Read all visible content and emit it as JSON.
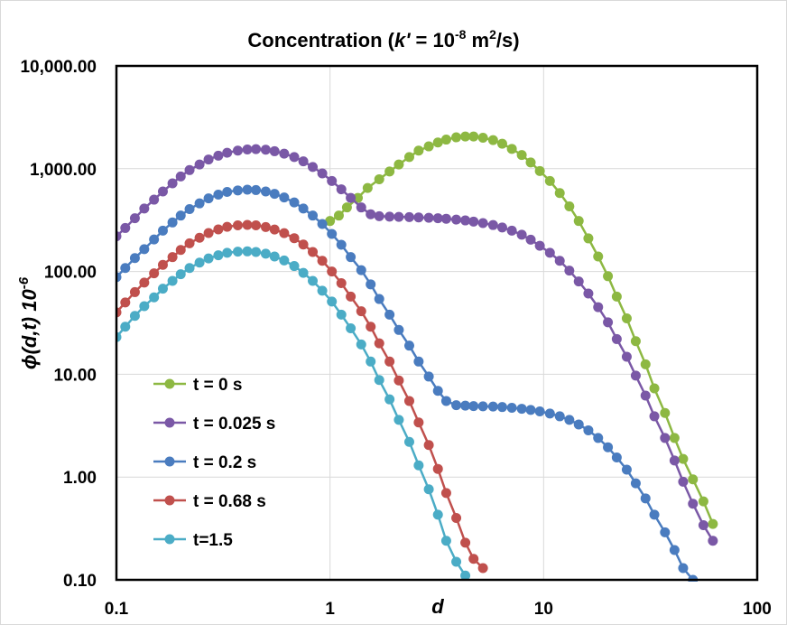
{
  "chart_data": {
    "type": "line",
    "title": {
      "prefix": "Concentration (",
      "k_symbol": "k'",
      "middle": " = 10",
      "exp1": "-8",
      "unit": " m",
      "exp2": "2",
      "suffix": "/s)"
    },
    "xlabel": "d",
    "ylabel": {
      "main": "ϕ(d,t) 10",
      "exp": "-6"
    },
    "x_scale": "log",
    "y_scale": "log",
    "xlim": [
      0.1,
      100
    ],
    "ylim": [
      0.1,
      10000
    ],
    "x_ticks": [
      {
        "value": 0.1,
        "label": "0.1"
      },
      {
        "value": 1,
        "label": "1"
      },
      {
        "value": 10,
        "label": "10"
      },
      {
        "value": 100,
        "label": "100"
      }
    ],
    "y_ticks": [
      {
        "value": 0.1,
        "label": "0.10"
      },
      {
        "value": 1,
        "label": "1.00"
      },
      {
        "value": 10,
        "label": "10.00"
      },
      {
        "value": 100,
        "label": "100.00"
      },
      {
        "value": 1000,
        "label": "1,000.00"
      },
      {
        "value": 10000,
        "label": "10,000.00"
      }
    ],
    "grid": true,
    "legend_position": "left-lower",
    "series": [
      {
        "name": "t = 0 s",
        "color": "#8DB842",
        "points": [
          [
            1.0,
            310
          ],
          [
            1.1,
            350
          ],
          [
            1.2,
            420
          ],
          [
            1.35,
            520
          ],
          [
            1.5,
            650
          ],
          [
            1.7,
            790
          ],
          [
            1.9,
            940
          ],
          [
            2.1,
            1100
          ],
          [
            2.35,
            1300
          ],
          [
            2.6,
            1500
          ],
          [
            2.9,
            1650
          ],
          [
            3.2,
            1800
          ],
          [
            3.5,
            1920
          ],
          [
            3.9,
            2020
          ],
          [
            4.3,
            2060
          ],
          [
            4.7,
            2060
          ],
          [
            5.2,
            2000
          ],
          [
            5.8,
            1900
          ],
          [
            6.4,
            1750
          ],
          [
            7.1,
            1560
          ],
          [
            7.9,
            1360
          ],
          [
            8.7,
            1150
          ],
          [
            9.6,
            950
          ],
          [
            10.7,
            760
          ],
          [
            11.9,
            580
          ],
          [
            13.2,
            430
          ],
          [
            14.6,
            310
          ],
          [
            16.2,
            210
          ],
          [
            18,
            140
          ],
          [
            20,
            90
          ],
          [
            22,
            57
          ],
          [
            24.5,
            35
          ],
          [
            27,
            21
          ],
          [
            30,
            12.5
          ],
          [
            33,
            7.3
          ],
          [
            37,
            4.2
          ],
          [
            41,
            2.4
          ],
          [
            45,
            1.5
          ],
          [
            50,
            0.95
          ],
          [
            56,
            0.58
          ],
          [
            62,
            0.35
          ]
        ]
      },
      {
        "name": "t = 0.025 s",
        "color": "#7A58A6",
        "points": [
          [
            0.1,
            220
          ],
          [
            0.11,
            265
          ],
          [
            0.122,
            330
          ],
          [
            0.135,
            410
          ],
          [
            0.15,
            500
          ],
          [
            0.165,
            600
          ],
          [
            0.183,
            720
          ],
          [
            0.2,
            840
          ],
          [
            0.22,
            970
          ],
          [
            0.245,
            1100
          ],
          [
            0.27,
            1230
          ],
          [
            0.3,
            1340
          ],
          [
            0.33,
            1430
          ],
          [
            0.37,
            1500
          ],
          [
            0.41,
            1540
          ],
          [
            0.45,
            1550
          ],
          [
            0.5,
            1530
          ],
          [
            0.55,
            1480
          ],
          [
            0.61,
            1400
          ],
          [
            0.68,
            1300
          ],
          [
            0.75,
            1180
          ],
          [
            0.83,
            1040
          ],
          [
            0.92,
            900
          ],
          [
            1.02,
            760
          ],
          [
            1.13,
            630
          ],
          [
            1.25,
            520
          ],
          [
            1.4,
            420
          ],
          [
            1.55,
            360
          ],
          [
            1.7,
            345
          ],
          [
            1.9,
            342
          ],
          [
            2.1,
            340
          ],
          [
            2.35,
            338
          ],
          [
            2.6,
            336
          ],
          [
            2.9,
            333
          ],
          [
            3.2,
            330
          ],
          [
            3.5,
            326
          ],
          [
            3.9,
            320
          ],
          [
            4.3,
            314
          ],
          [
            4.7,
            306
          ],
          [
            5.2,
            296
          ],
          [
            5.8,
            283
          ],
          [
            6.4,
            268
          ],
          [
            7.1,
            250
          ],
          [
            7.9,
            228
          ],
          [
            8.7,
            204
          ],
          [
            9.6,
            178
          ],
          [
            10.7,
            152
          ],
          [
            11.9,
            127
          ],
          [
            13.2,
            102
          ],
          [
            14.6,
            80
          ],
          [
            16.2,
            61
          ],
          [
            18,
            45
          ],
          [
            20,
            32
          ],
          [
            22,
            22
          ],
          [
            24.5,
            14.8
          ],
          [
            27,
            9.7
          ],
          [
            30,
            6.2
          ],
          [
            33,
            3.9
          ],
          [
            37,
            2.4
          ],
          [
            41,
            1.45
          ],
          [
            45,
            0.9
          ],
          [
            50,
            0.55
          ],
          [
            56,
            0.34
          ],
          [
            62,
            0.24
          ]
        ]
      },
      {
        "name": "t = 0.2 s",
        "color": "#4A7CBF",
        "points": [
          [
            0.1,
            88
          ],
          [
            0.11,
            108
          ],
          [
            0.122,
            135
          ],
          [
            0.135,
            165
          ],
          [
            0.15,
            205
          ],
          [
            0.165,
            250
          ],
          [
            0.183,
            300
          ],
          [
            0.2,
            350
          ],
          [
            0.22,
            405
          ],
          [
            0.245,
            460
          ],
          [
            0.27,
            515
          ],
          [
            0.3,
            560
          ],
          [
            0.33,
            595
          ],
          [
            0.37,
            615
          ],
          [
            0.41,
            625
          ],
          [
            0.45,
            620
          ],
          [
            0.5,
            600
          ],
          [
            0.55,
            570
          ],
          [
            0.61,
            525
          ],
          [
            0.68,
            470
          ],
          [
            0.75,
            410
          ],
          [
            0.83,
            350
          ],
          [
            0.92,
            290
          ],
          [
            1.02,
            232
          ],
          [
            1.13,
            182
          ],
          [
            1.25,
            138
          ],
          [
            1.4,
            103
          ],
          [
            1.55,
            75
          ],
          [
            1.7,
            54
          ],
          [
            1.9,
            38
          ],
          [
            2.1,
            27
          ],
          [
            2.35,
            19
          ],
          [
            2.6,
            13.3
          ],
          [
            2.9,
            9.5
          ],
          [
            3.2,
            6.9
          ],
          [
            3.5,
            5.5
          ],
          [
            3.9,
            5.0
          ],
          [
            4.3,
            4.95
          ],
          [
            4.7,
            4.9
          ],
          [
            5.2,
            4.88
          ],
          [
            5.8,
            4.85
          ],
          [
            6.4,
            4.8
          ],
          [
            7.1,
            4.72
          ],
          [
            7.9,
            4.62
          ],
          [
            8.7,
            4.5
          ],
          [
            9.6,
            4.35
          ],
          [
            10.7,
            4.15
          ],
          [
            11.9,
            3.9
          ],
          [
            13.2,
            3.6
          ],
          [
            14.6,
            3.25
          ],
          [
            16.2,
            2.85
          ],
          [
            18,
            2.4
          ],
          [
            20,
            1.95
          ],
          [
            22,
            1.55
          ],
          [
            24.5,
            1.18
          ],
          [
            27,
            0.87
          ],
          [
            30,
            0.62
          ],
          [
            33,
            0.43
          ],
          [
            37,
            0.29
          ],
          [
            41,
            0.195
          ],
          [
            45,
            0.13
          ],
          [
            50,
            0.1
          ]
        ]
      },
      {
        "name": "t = 0.68 s",
        "color": "#C0504D",
        "points": [
          [
            0.1,
            40
          ],
          [
            0.11,
            50
          ],
          [
            0.122,
            63
          ],
          [
            0.135,
            78
          ],
          [
            0.15,
            96
          ],
          [
            0.165,
            116
          ],
          [
            0.183,
            138
          ],
          [
            0.2,
            162
          ],
          [
            0.22,
            188
          ],
          [
            0.245,
            213
          ],
          [
            0.27,
            237
          ],
          [
            0.3,
            257
          ],
          [
            0.33,
            272
          ],
          [
            0.37,
            281
          ],
          [
            0.41,
            284
          ],
          [
            0.45,
            281
          ],
          [
            0.5,
            271
          ],
          [
            0.55,
            256
          ],
          [
            0.61,
            236
          ],
          [
            0.68,
            211
          ],
          [
            0.75,
            183
          ],
          [
            0.83,
            155
          ],
          [
            0.92,
            127
          ],
          [
            1.02,
            100
          ],
          [
            1.13,
            77
          ],
          [
            1.25,
            57
          ],
          [
            1.4,
            41
          ],
          [
            1.55,
            29
          ],
          [
            1.7,
            20
          ],
          [
            1.9,
            13.3
          ],
          [
            2.1,
            8.7
          ],
          [
            2.35,
            5.5
          ],
          [
            2.6,
            3.4
          ],
          [
            2.9,
            2.05
          ],
          [
            3.2,
            1.2
          ],
          [
            3.5,
            0.7
          ],
          [
            3.9,
            0.4
          ],
          [
            4.3,
            0.23
          ],
          [
            4.7,
            0.16
          ],
          [
            5.2,
            0.13
          ]
        ]
      },
      {
        "name": "t=1.5",
        "color": "#4BACC6",
        "points": [
          [
            0.1,
            23
          ],
          [
            0.11,
            29
          ],
          [
            0.122,
            37
          ],
          [
            0.135,
            46
          ],
          [
            0.15,
            56
          ],
          [
            0.165,
            68
          ],
          [
            0.183,
            81
          ],
          [
            0.2,
            94
          ],
          [
            0.22,
            108
          ],
          [
            0.245,
            122
          ],
          [
            0.27,
            134
          ],
          [
            0.3,
            144
          ],
          [
            0.33,
            152
          ],
          [
            0.37,
            156
          ],
          [
            0.41,
            157
          ],
          [
            0.45,
            155
          ],
          [
            0.5,
            149
          ],
          [
            0.55,
            140
          ],
          [
            0.61,
            128
          ],
          [
            0.68,
            113
          ],
          [
            0.75,
            97
          ],
          [
            0.83,
            81
          ],
          [
            0.92,
            65
          ],
          [
            1.02,
            51
          ],
          [
            1.13,
            38
          ],
          [
            1.25,
            28
          ],
          [
            1.4,
            19.5
          ],
          [
            1.55,
            13.3
          ],
          [
            1.7,
            8.8
          ],
          [
            1.9,
            5.7
          ],
          [
            2.1,
            3.6
          ],
          [
            2.35,
            2.2
          ],
          [
            2.6,
            1.3
          ],
          [
            2.9,
            0.76
          ],
          [
            3.2,
            0.43
          ],
          [
            3.5,
            0.24
          ],
          [
            3.9,
            0.15
          ],
          [
            4.3,
            0.11
          ]
        ]
      }
    ]
  }
}
